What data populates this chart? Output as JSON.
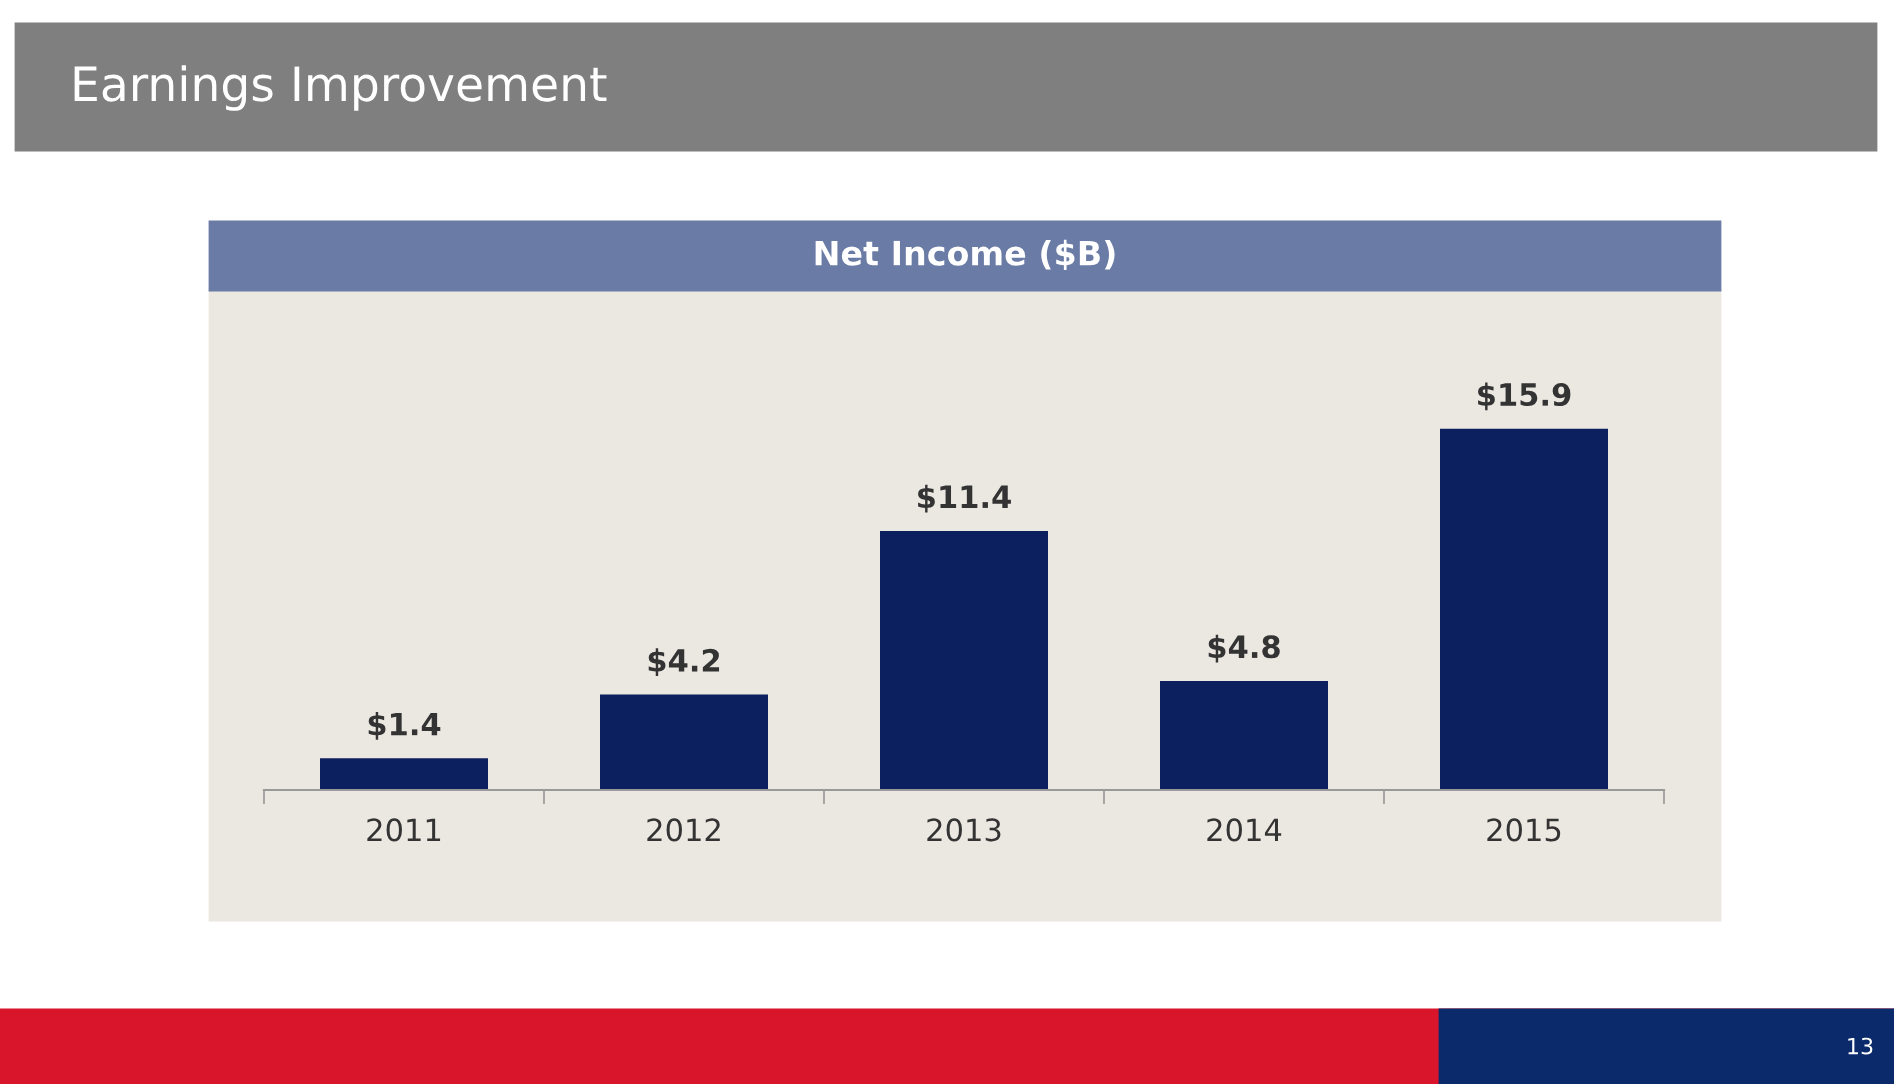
{
  "chart_data": {
    "type": "bar",
    "title": "Earnings Improvement",
    "subtitle": "Net Income ($B)",
    "categories": [
      "2011",
      "2012",
      "2013",
      "2014",
      "2015"
    ],
    "values": [
      1.4,
      4.2,
      11.4,
      4.8,
      15.9
    ],
    "value_labels": [
      "$1.4",
      "$4.2",
      "$11.4",
      "$4.8",
      "$15.9"
    ],
    "color": "#0c1f5e",
    "grid": false,
    "legend": false,
    "annotations": [
      "13"
    ]
  }
}
